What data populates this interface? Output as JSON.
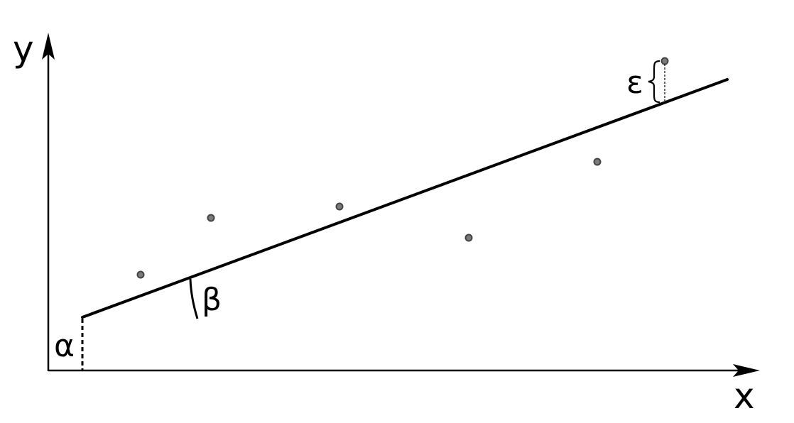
{
  "labels": {
    "y_axis": "y",
    "x_axis": "x",
    "intercept": "α",
    "slope": "β",
    "error": "ε"
  },
  "colors": {
    "stroke": "#000000",
    "point_fill": "#7a7a7a",
    "point_stroke": "#444444"
  }
}
